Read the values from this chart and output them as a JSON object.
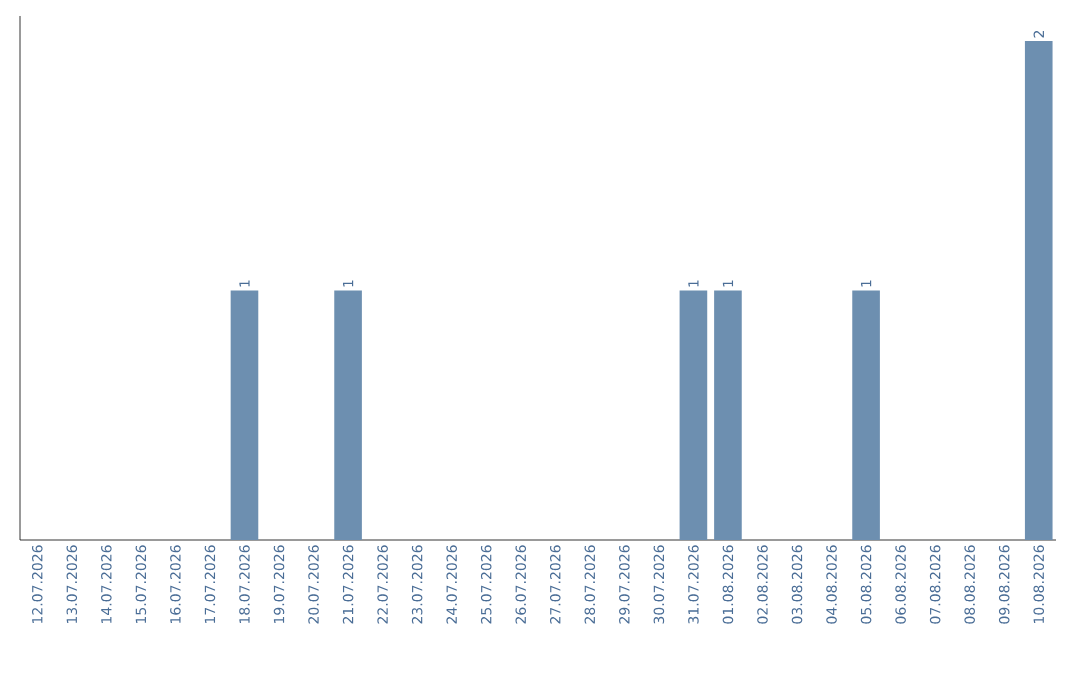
{
  "chart_data": {
    "type": "bar",
    "categories": [
      "12.07.2026",
      "13.07.2026",
      "14.07.2026",
      "15.07.2026",
      "16.07.2026",
      "17.07.2026",
      "18.07.2026",
      "19.07.2026",
      "20.07.2026",
      "21.07.2026",
      "22.07.2026",
      "23.07.2026",
      "24.07.2026",
      "25.07.2026",
      "26.07.2026",
      "27.07.2026",
      "28.07.2026",
      "29.07.2026",
      "30.07.2026",
      "31.07.2026",
      "01.08.2026",
      "02.08.2026",
      "03.08.2026",
      "04.08.2026",
      "05.08.2026",
      "06.08.2026",
      "07.08.2026",
      "08.08.2026",
      "09.08.2026",
      "10.08.2026"
    ],
    "values": [
      0,
      0,
      0,
      0,
      0,
      0,
      1,
      0,
      0,
      1,
      0,
      0,
      0,
      0,
      0,
      0,
      0,
      0,
      0,
      1,
      1,
      0,
      0,
      0,
      1,
      0,
      0,
      0,
      0,
      2
    ],
    "value_labels": [
      null,
      null,
      null,
      null,
      null,
      null,
      "1",
      null,
      null,
      "1",
      null,
      null,
      null,
      null,
      null,
      null,
      null,
      null,
      null,
      "1",
      "1",
      null,
      null,
      null,
      "1",
      null,
      null,
      null,
      null,
      "2"
    ],
    "color": "#6d8fb0"
  }
}
